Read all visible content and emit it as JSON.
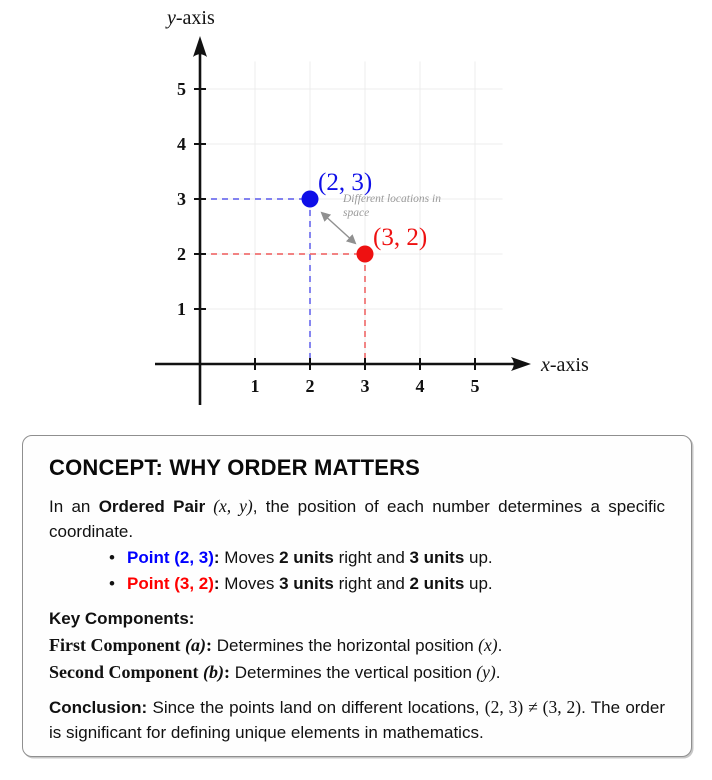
{
  "chart_data": {
    "type": "scatter",
    "title": "",
    "xlabel": "x-axis",
    "ylabel": "y-axis",
    "xlim": [
      0,
      5.5
    ],
    "ylim": [
      0,
      5.5
    ],
    "x_ticks": [
      1,
      2,
      3,
      4,
      5
    ],
    "y_ticks": [
      1,
      2,
      3,
      4,
      5
    ],
    "grid": true,
    "points": [
      {
        "x": 2,
        "y": 3,
        "label": "(2, 3)",
        "color": "#0f0fe8",
        "dash_color": "#7070ee"
      },
      {
        "x": 3,
        "y": 2,
        "label": "(3, 2)",
        "color": "#ee1111",
        "dash_color": "#f07070"
      }
    ],
    "annotation": {
      "text_lines": [
        "Different locations in",
        "space"
      ],
      "color": "#9a9a9a",
      "arrow_color": "#909090"
    },
    "axis_color": "#111111",
    "grid_color": "#ececec"
  },
  "concept_box": {
    "title": "CONCEPT: WHY ORDER MATTERS",
    "intro": {
      "pre": "In an ",
      "term": "Ordered Pair",
      "math": " (x, y)",
      "post": ", the position of each number determines a specific coordinate."
    },
    "bullets": [
      {
        "point_label": "Point (2, 3)",
        "colon": ": ",
        "moves": "Moves ",
        "units1": "2 units",
        "mid": " right and ",
        "units2": "3 units",
        "end": " up.",
        "color": "#0000ff"
      },
      {
        "point_label": "Point (3, 2)",
        "colon": ": ",
        "moves": "Moves ",
        "units1": "3 units",
        "mid": " right and ",
        "units2": "2 units",
        "end": " up.",
        "color": "#ff0000"
      }
    ],
    "key_components": {
      "heading": "Key Components:",
      "items": [
        {
          "term": "First Component",
          "var": " (a)",
          "colon": ":",
          "desc": " Determines the horizontal position",
          "var2": " (x)",
          "end": "."
        },
        {
          "term": "Second Component",
          "var": " (b)",
          "colon": ":",
          "desc": " Determines the vertical position",
          "var2": " (y)",
          "end": "."
        }
      ]
    },
    "conclusion": {
      "label": "Conclusion:",
      "pre": " Since the points land on different locations, ",
      "math": "(2, 3) ≠ (3, 2)",
      "post": ". The order is significant for defining unique elements in mathematics."
    }
  }
}
